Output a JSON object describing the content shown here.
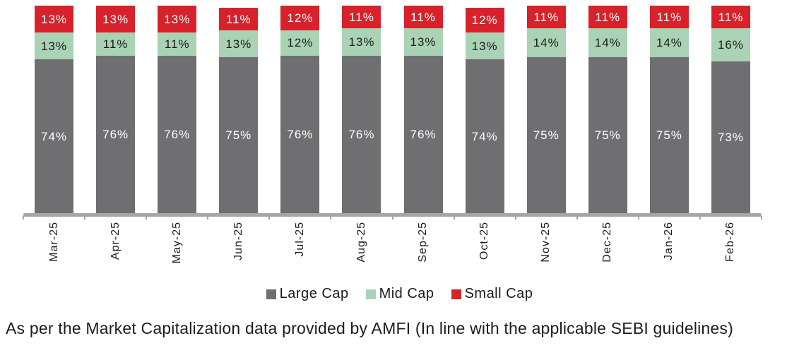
{
  "caption": "As per the Market Capitalization data provided by AMFI (In line with the applicable SEBI guidelines)",
  "chart_data": {
    "type": "bar",
    "stacked": true,
    "orientation": "vertical",
    "title": "",
    "xlabel": "",
    "ylabel": "",
    "ylim": [
      0,
      100
    ],
    "grid": false,
    "legend_position": "bottom",
    "value_suffix": "%",
    "value_labels": true,
    "axis_color": "#a6a6a6",
    "categories": [
      "Mar-25",
      "Apr-25",
      "May-25",
      "Jun-25",
      "Jul-25",
      "Aug-25",
      "Sep-25",
      "Oct-25",
      "Nov-25",
      "Dec-25",
      "Jan-26",
      "Feb-26"
    ],
    "series": [
      {
        "name": "Large Cap",
        "color": "#6f6f71",
        "label_color": "#ffffff",
        "values": [
          74,
          76,
          76,
          75,
          76,
          76,
          76,
          74,
          75,
          75,
          75,
          73
        ]
      },
      {
        "name": "Mid Cap",
        "color": "#a9d3b4",
        "label_color": "#1b1b1b",
        "values": [
          13,
          11,
          11,
          13,
          12,
          13,
          13,
          13,
          14,
          14,
          14,
          16
        ]
      },
      {
        "name": "Small Cap",
        "color": "#d7222c",
        "label_color": "#ffffff",
        "values": [
          13,
          13,
          13,
          11,
          12,
          11,
          11,
          12,
          11,
          11,
          11,
          11
        ]
      }
    ]
  }
}
